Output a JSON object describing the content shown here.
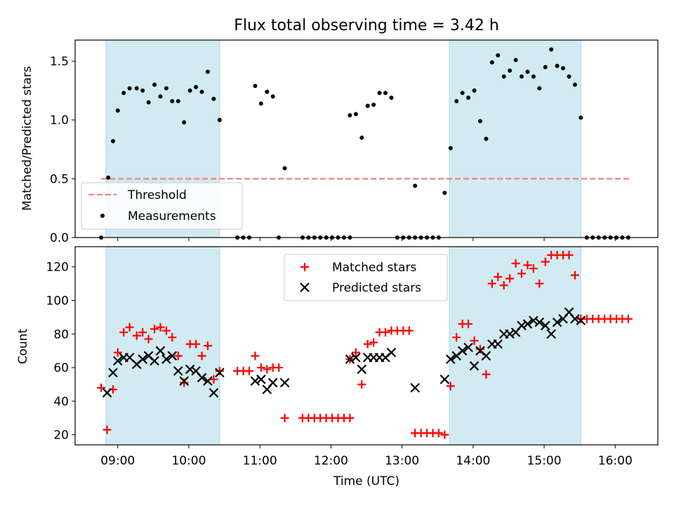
{
  "chart_data": [
    {
      "type": "scatter",
      "title": "Flux total observing time = 3.42 h",
      "ylabel": "Matched/Predicted stars",
      "ylim": [
        0,
        1.68
      ],
      "xlim": [
        "08:24",
        "16:36"
      ],
      "yticks": [
        "0.0",
        "0.5",
        "1.0",
        "1.5"
      ],
      "shaded_intervals": [
        [
          "08:50",
          "10:26"
        ],
        [
          "13:40",
          "15:31"
        ]
      ],
      "shade_color": "#add8e6",
      "threshold": {
        "name": "Threshold",
        "value": 0.5,
        "x_range": [
          "08:46",
          "16:12"
        ],
        "color": "#f08080",
        "style": "dashed"
      },
      "legend": {
        "placement": "lower-left",
        "entries": [
          "Threshold",
          "Measurements"
        ]
      },
      "series": [
        {
          "name": "Measurements",
          "marker": "dot",
          "color": "#000000",
          "points": [
            [
              "08:46",
              0.0
            ],
            [
              "08:52",
              0.51
            ],
            [
              "08:56",
              0.82
            ],
            [
              "09:00",
              1.08
            ],
            [
              "09:05",
              1.23
            ],
            [
              "09:10",
              1.27
            ],
            [
              "09:16",
              1.27
            ],
            [
              "09:21",
              1.25
            ],
            [
              "09:26",
              1.15
            ],
            [
              "09:31",
              1.3
            ],
            [
              "09:36",
              1.2
            ],
            [
              "09:41",
              1.27
            ],
            [
              "09:46",
              1.16
            ],
            [
              "09:51",
              1.16
            ],
            [
              "09:56",
              0.98
            ],
            [
              "10:01",
              1.25
            ],
            [
              "10:06",
              1.28
            ],
            [
              "10:11",
              1.24
            ],
            [
              "10:16",
              1.41
            ],
            [
              "10:21",
              1.18
            ],
            [
              "10:26",
              1.0
            ],
            [
              "10:41",
              0.0
            ],
            [
              "10:46",
              0.0
            ],
            [
              "10:51",
              0.0
            ],
            [
              "10:56",
              1.29
            ],
            [
              "11:01",
              1.14
            ],
            [
              "11:06",
              1.24
            ],
            [
              "11:11",
              1.2
            ],
            [
              "11:16",
              0.0
            ],
            [
              "11:21",
              0.59
            ],
            [
              "11:36",
              0.0
            ],
            [
              "11:41",
              0.0
            ],
            [
              "11:46",
              0.0
            ],
            [
              "11:51",
              0.0
            ],
            [
              "11:56",
              0.0
            ],
            [
              "12:01",
              0.0
            ],
            [
              "12:06",
              0.0
            ],
            [
              "12:11",
              0.0
            ],
            [
              "12:16",
              0.0
            ],
            [
              "12:16",
              1.04
            ],
            [
              "12:21",
              1.05
            ],
            [
              "12:26",
              0.85
            ],
            [
              "12:31",
              1.12
            ],
            [
              "12:36",
              1.13
            ],
            [
              "12:41",
              1.23
            ],
            [
              "12:46",
              1.23
            ],
            [
              "12:51",
              1.19
            ],
            [
              "12:56",
              0.0
            ],
            [
              "13:01",
              0.0
            ],
            [
              "13:06",
              0.0
            ],
            [
              "13:11",
              0.0
            ],
            [
              "13:11",
              0.44
            ],
            [
              "13:16",
              0.0
            ],
            [
              "13:21",
              0.0
            ],
            [
              "13:26",
              0.0
            ],
            [
              "13:31",
              0.0
            ],
            [
              "13:36",
              0.38
            ],
            [
              "13:41",
              0.76
            ],
            [
              "13:46",
              1.16
            ],
            [
              "13:51",
              1.23
            ],
            [
              "13:56",
              1.19
            ],
            [
              "14:01",
              1.25
            ],
            [
              "14:06",
              0.99
            ],
            [
              "14:11",
              0.84
            ],
            [
              "14:16",
              1.49
            ],
            [
              "14:21",
              1.55
            ],
            [
              "14:26",
              1.37
            ],
            [
              "14:31",
              1.42
            ],
            [
              "14:36",
              1.51
            ],
            [
              "14:41",
              1.37
            ],
            [
              "14:46",
              1.41
            ],
            [
              "14:51",
              1.37
            ],
            [
              "14:56",
              1.27
            ],
            [
              "15:01",
              1.45
            ],
            [
              "15:06",
              1.6
            ],
            [
              "15:11",
              1.46
            ],
            [
              "15:16",
              1.44
            ],
            [
              "15:21",
              1.37
            ],
            [
              "15:26",
              1.3
            ],
            [
              "15:31",
              1.02
            ],
            [
              "15:36",
              0.0
            ],
            [
              "15:41",
              0.0
            ],
            [
              "15:46",
              0.0
            ],
            [
              "15:51",
              0.0
            ],
            [
              "15:56",
              0.0
            ],
            [
              "16:01",
              0.0
            ],
            [
              "16:06",
              0.0
            ],
            [
              "16:11",
              0.0
            ]
          ]
        }
      ]
    },
    {
      "type": "scatter",
      "xlabel": "Time (UTC)",
      "ylabel": "Count",
      "ylim": [
        14,
        132
      ],
      "xlim": [
        "08:24",
        "16:36"
      ],
      "yticks": [
        "20",
        "40",
        "60",
        "80",
        "100",
        "120"
      ],
      "xticks": [
        "09:00",
        "10:00",
        "11:00",
        "12:00",
        "13:00",
        "14:00",
        "15:00",
        "16:00"
      ],
      "shaded_intervals": [
        [
          "08:50",
          "10:26"
        ],
        [
          "13:40",
          "15:31"
        ]
      ],
      "shade_color": "#add8e6",
      "legend": {
        "placement": "upper-center",
        "entries": [
          "Matched stars",
          "Predicted stars"
        ]
      },
      "series": [
        {
          "name": "Matched stars",
          "marker": "plus",
          "color": "#ff0000",
          "points": [
            [
              "08:46",
              48
            ],
            [
              "08:51",
              23
            ],
            [
              "08:56",
              47
            ],
            [
              "09:00",
              69
            ],
            [
              "09:05",
              81
            ],
            [
              "09:10",
              84
            ],
            [
              "09:16",
              79
            ],
            [
              "09:21",
              81
            ],
            [
              "09:26",
              77
            ],
            [
              "09:31",
              83
            ],
            [
              "09:36",
              84
            ],
            [
              "09:41",
              82
            ],
            [
              "09:46",
              78
            ],
            [
              "09:51",
              67
            ],
            [
              "09:56",
              51
            ],
            [
              "10:01",
              74
            ],
            [
              "10:06",
              74
            ],
            [
              "10:11",
              67
            ],
            [
              "10:16",
              73
            ],
            [
              "10:21",
              53
            ],
            [
              "10:26",
              58
            ],
            [
              "10:41",
              58
            ],
            [
              "10:46",
              58
            ],
            [
              "10:51",
              58
            ],
            [
              "10:56",
              67
            ],
            [
              "11:01",
              60
            ],
            [
              "11:06",
              59
            ],
            [
              "11:11",
              60
            ],
            [
              "11:16",
              60
            ],
            [
              "11:21",
              30
            ],
            [
              "11:36",
              30
            ],
            [
              "11:41",
              30
            ],
            [
              "11:46",
              30
            ],
            [
              "11:51",
              30
            ],
            [
              "11:56",
              30
            ],
            [
              "12:01",
              30
            ],
            [
              "12:06",
              30
            ],
            [
              "12:11",
              30
            ],
            [
              "12:16",
              30
            ],
            [
              "12:16",
              65
            ],
            [
              "12:21",
              69
            ],
            [
              "12:26",
              50
            ],
            [
              "12:31",
              74
            ],
            [
              "12:36",
              75
            ],
            [
              "12:41",
              81
            ],
            [
              "12:46",
              81
            ],
            [
              "12:51",
              82
            ],
            [
              "12:56",
              82
            ],
            [
              "13:01",
              82
            ],
            [
              "13:06",
              82
            ],
            [
              "13:11",
              21
            ],
            [
              "13:16",
              21
            ],
            [
              "13:21",
              21
            ],
            [
              "13:26",
              21
            ],
            [
              "13:31",
              21
            ],
            [
              "13:36",
              20
            ],
            [
              "13:41",
              49
            ],
            [
              "13:46",
              78
            ],
            [
              "13:51",
              86
            ],
            [
              "13:56",
              86
            ],
            [
              "14:01",
              76
            ],
            [
              "14:06",
              71
            ],
            [
              "14:11",
              56
            ],
            [
              "14:16",
              110
            ],
            [
              "14:21",
              114
            ],
            [
              "14:26",
              109
            ],
            [
              "14:31",
              113
            ],
            [
              "14:36",
              122
            ],
            [
              "14:41",
              116
            ],
            [
              "14:46",
              121
            ],
            [
              "14:51",
              119
            ],
            [
              "14:56",
              110
            ],
            [
              "15:01",
              123
            ],
            [
              "15:06",
              127
            ],
            [
              "15:11",
              127
            ],
            [
              "15:16",
              127
            ],
            [
              "15:21",
              127
            ],
            [
              "15:26",
              115
            ],
            [
              "15:31",
              89
            ],
            [
              "15:36",
              89
            ],
            [
              "15:41",
              89
            ],
            [
              "15:46",
              89
            ],
            [
              "15:51",
              89
            ],
            [
              "15:56",
              89
            ],
            [
              "16:01",
              89
            ],
            [
              "16:06",
              89
            ],
            [
              "16:11",
              89
            ]
          ]
        },
        {
          "name": "Predicted stars",
          "marker": "x",
          "color": "#000000",
          "points": [
            [
              "08:51",
              45
            ],
            [
              "08:56",
              57
            ],
            [
              "09:00",
              64
            ],
            [
              "09:05",
              66
            ],
            [
              "09:10",
              66
            ],
            [
              "09:16",
              62
            ],
            [
              "09:21",
              65
            ],
            [
              "09:26",
              67
            ],
            [
              "09:31",
              64
            ],
            [
              "09:36",
              70
            ],
            [
              "09:41",
              65
            ],
            [
              "09:46",
              67
            ],
            [
              "09:51",
              58
            ],
            [
              "09:56",
              52
            ],
            [
              "10:01",
              59
            ],
            [
              "10:06",
              58
            ],
            [
              "10:11",
              54
            ],
            [
              "10:16",
              52
            ],
            [
              "10:21",
              45
            ],
            [
              "10:26",
              57
            ],
            [
              "10:56",
              52
            ],
            [
              "11:01",
              53
            ],
            [
              "11:06",
              47
            ],
            [
              "11:11",
              51
            ],
            [
              "11:21",
              51
            ],
            [
              "12:16",
              65
            ],
            [
              "12:21",
              66
            ],
            [
              "12:26",
              59
            ],
            [
              "12:31",
              66
            ],
            [
              "12:36",
              66
            ],
            [
              "12:41",
              66
            ],
            [
              "12:46",
              66
            ],
            [
              "12:51",
              69
            ],
            [
              "13:11",
              48
            ],
            [
              "13:36",
              53
            ],
            [
              "13:41",
              65
            ],
            [
              "13:46",
              67
            ],
            [
              "13:51",
              70
            ],
            [
              "13:56",
              72
            ],
            [
              "14:01",
              61
            ],
            [
              "14:06",
              70
            ],
            [
              "14:11",
              67
            ],
            [
              "14:16",
              74
            ],
            [
              "14:21",
              74
            ],
            [
              "14:26",
              80
            ],
            [
              "14:31",
              80
            ],
            [
              "14:36",
              81
            ],
            [
              "14:41",
              85
            ],
            [
              "14:46",
              86
            ],
            [
              "14:51",
              88
            ],
            [
              "14:56",
              87
            ],
            [
              "15:01",
              85
            ],
            [
              "15:06",
              80
            ],
            [
              "15:11",
              87
            ],
            [
              "15:16",
              89
            ],
            [
              "15:21",
              93
            ],
            [
              "15:26",
              89
            ],
            [
              "15:31",
              88
            ]
          ]
        }
      ]
    }
  ]
}
